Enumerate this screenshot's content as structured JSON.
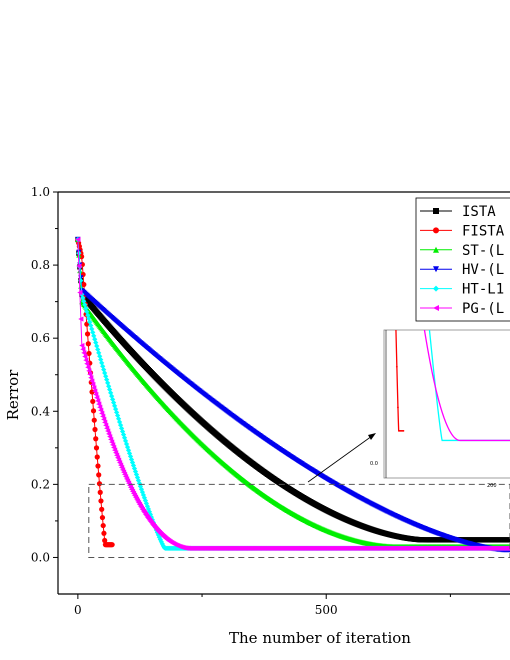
{
  "chart_data": {
    "type": "line",
    "xlabel": "The number of iteration",
    "ylabel": "Rerror",
    "xlim": [
      -40,
      870
    ],
    "ylim": [
      -0.1,
      1.0
    ],
    "x_ticks": [
      0,
      500
    ],
    "y_ticks": [
      0.0,
      0.2,
      0.4,
      0.6,
      0.8,
      1.0
    ],
    "x_tick_labels": [
      "0",
      "500"
    ],
    "y_tick_labels": [
      "0.0",
      "0.2",
      "0.4",
      "0.6",
      "0.8",
      "1.0"
    ],
    "legend_position": "top-right",
    "series": [
      {
        "name": "ISTA",
        "color": "#000000",
        "marker": "square",
        "x0": 0,
        "x1": 870,
        "start": 0.87,
        "knee": 0.72,
        "plateau": 0.048,
        "settle": 700,
        "curve": 1.7
      },
      {
        "name": "FISTA",
        "color": "#ff0000",
        "marker": "circle",
        "x0": 0,
        "x1": 70,
        "start": 0.87,
        "knee": 0.82,
        "plateau": 0.035,
        "settle": 55,
        "curve": 1.1
      },
      {
        "name": "ST-(L",
        "color": "#00ee00",
        "marker": "triangle-up",
        "x0": 0,
        "x1": 870,
        "start": 0.87,
        "knee": 0.7,
        "plateau": 0.03,
        "settle": 640,
        "curve": 1.8
      },
      {
        "name": "HV-(L",
        "color": "#0000ee",
        "marker": "triangle-down",
        "x0": 0,
        "x1": 870,
        "start": 0.87,
        "knee": 0.73,
        "plateau": 0.02,
        "settle": 860,
        "curve": 1.5
      },
      {
        "name": "HT-L1",
        "color": "#00ffff",
        "marker": "diamond",
        "x0": 0,
        "x1": 870,
        "start": 0.87,
        "knee": 0.72,
        "plateau": 0.025,
        "settle": 175,
        "curve": 1.15
      },
      {
        "name": "PG-(L",
        "color": "#ff00ff",
        "marker": "triangle-left",
        "x0": 0,
        "x1": 870,
        "start": 0.87,
        "knee": 0.58,
        "plateau": 0.025,
        "settle": 225,
        "curve": 2.0
      }
    ],
    "zoom_box": {
      "x": [
        22,
        870
      ],
      "y": [
        0.0,
        0.2
      ]
    },
    "inset": {
      "x_tick_labels": [
        "200"
      ],
      "y_tick_labels": [
        "0.0"
      ]
    }
  }
}
